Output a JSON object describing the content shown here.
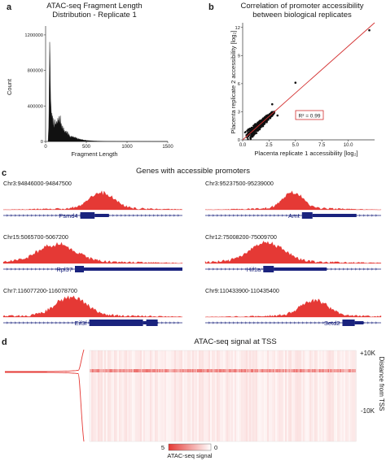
{
  "panels": {
    "a": {
      "letter": "a",
      "title_lines": [
        "ATAC-seq Fragment Length",
        "Distribution - Replicate 1"
      ],
      "ylabel": "Count",
      "xlabel": "Fragment Length"
    },
    "b": {
      "letter": "b",
      "title_lines": [
        "Correlation of promoter accessibility",
        "between biological replicates"
      ],
      "ylabel": "Placenta replicate 2 accessibility [log₂]",
      "xlabel": "Placenta replicate 1 accessibility [log₂]",
      "r2_label": "R² = 0.99"
    },
    "c": {
      "letter": "c",
      "title": "Genes with accessible promoters",
      "tracks": [
        {
          "coord": "Chr3:94846000-94847500",
          "gene": "Psmd4"
        },
        {
          "coord": "Chr3:95237500-95239000",
          "gene": "Arnt"
        },
        {
          "coord": "Chr15:5065700-5067200",
          "gene": "Rpl37"
        },
        {
          "coord": "Chr12:75008200-75009700",
          "gene": "Hif1a"
        },
        {
          "coord": "Chr7:116077200-116078700",
          "gene": "Eif3f"
        },
        {
          "coord": "Chr9:110433900-110435400",
          "gene": "Setd2"
        }
      ]
    },
    "d": {
      "letter": "d",
      "title": "ATAC-seq signal at TSS",
      "top_label": "+10K",
      "bottom_label": "-10K",
      "side_label": "Distance from TSS",
      "colorbar_max": "5",
      "colorbar_min": "0",
      "colorbar_label": "ATAC-seq signal"
    }
  },
  "colors": {
    "signal_red": "#e53935",
    "fit_line": "#d32f2f",
    "gene_blue": "#1a237e"
  },
  "chart_data": [
    {
      "type": "area",
      "panel": "a",
      "title": "ATAC-seq Fragment Length Distribution - Replicate 1",
      "xlabel": "Fragment Length",
      "ylabel": "Count",
      "xlim": [
        0,
        1500
      ],
      "ylim": [
        0,
        1300000
      ],
      "x_ticks": [
        0,
        500,
        1000,
        1500
      ],
      "y_ticks": [
        0,
        400000,
        800000,
        1200000
      ],
      "y_tick_labels": [
        "0",
        "400000",
        "800000",
        "1200000"
      ],
      "series": [
        {
          "x": [
            30,
            40,
            45,
            50,
            55,
            60,
            70,
            80,
            100,
            120,
            140,
            160,
            180,
            200,
            220,
            240,
            260,
            280,
            300,
            350,
            400,
            450,
            500,
            600,
            700,
            800,
            1000,
            1200,
            1500
          ],
          "values": [
            0,
            200000,
            700000,
            1120000,
            950000,
            520000,
            330000,
            250000,
            210000,
            190000,
            200000,
            250000,
            240000,
            180000,
            130000,
            110000,
            100000,
            80000,
            60000,
            45000,
            30000,
            20000,
            12000,
            6000,
            3000,
            2000,
            1000,
            500,
            0
          ]
        }
      ]
    },
    {
      "type": "scatter",
      "panel": "b",
      "title": "Correlation of promoter accessibility between biological replicates",
      "xlabel": "Placenta replicate 1 accessibility [log₂]",
      "ylabel": "Placenta replicate 2 accessibility [log₂]",
      "xlim": [
        0,
        12.5
      ],
      "ylim": [
        0,
        12.5
      ],
      "x_ticks": [
        0,
        2.5,
        5,
        7.5,
        10
      ],
      "x_tick_labels": [
        "0.0",
        "2.5",
        "5.0",
        "7.5",
        "10.0"
      ],
      "y_ticks": [
        0,
        3,
        6,
        9,
        12
      ],
      "y_tick_labels": [
        "0",
        "3",
        "6",
        "9",
        "12"
      ],
      "fit_line": {
        "x": [
          0,
          12.5
        ],
        "y": [
          0,
          12.5
        ]
      },
      "r_squared": 0.99,
      "outliers": [
        {
          "x": 12.0,
          "y": 11.7
        },
        {
          "x": 5.0,
          "y": 6.1
        },
        {
          "x": 2.8,
          "y": 3.8
        },
        {
          "x": 3.3,
          "y": 2.6
        }
      ]
    },
    {
      "type": "heatmap",
      "panel": "d",
      "title": "ATAC-seq signal at TSS",
      "ylabel": "Distance from TSS",
      "y_tick_labels": [
        "+10K",
        "-10K"
      ],
      "colorbar": {
        "label": "ATAC-seq signal",
        "max": 5,
        "min": 0
      }
    }
  ]
}
